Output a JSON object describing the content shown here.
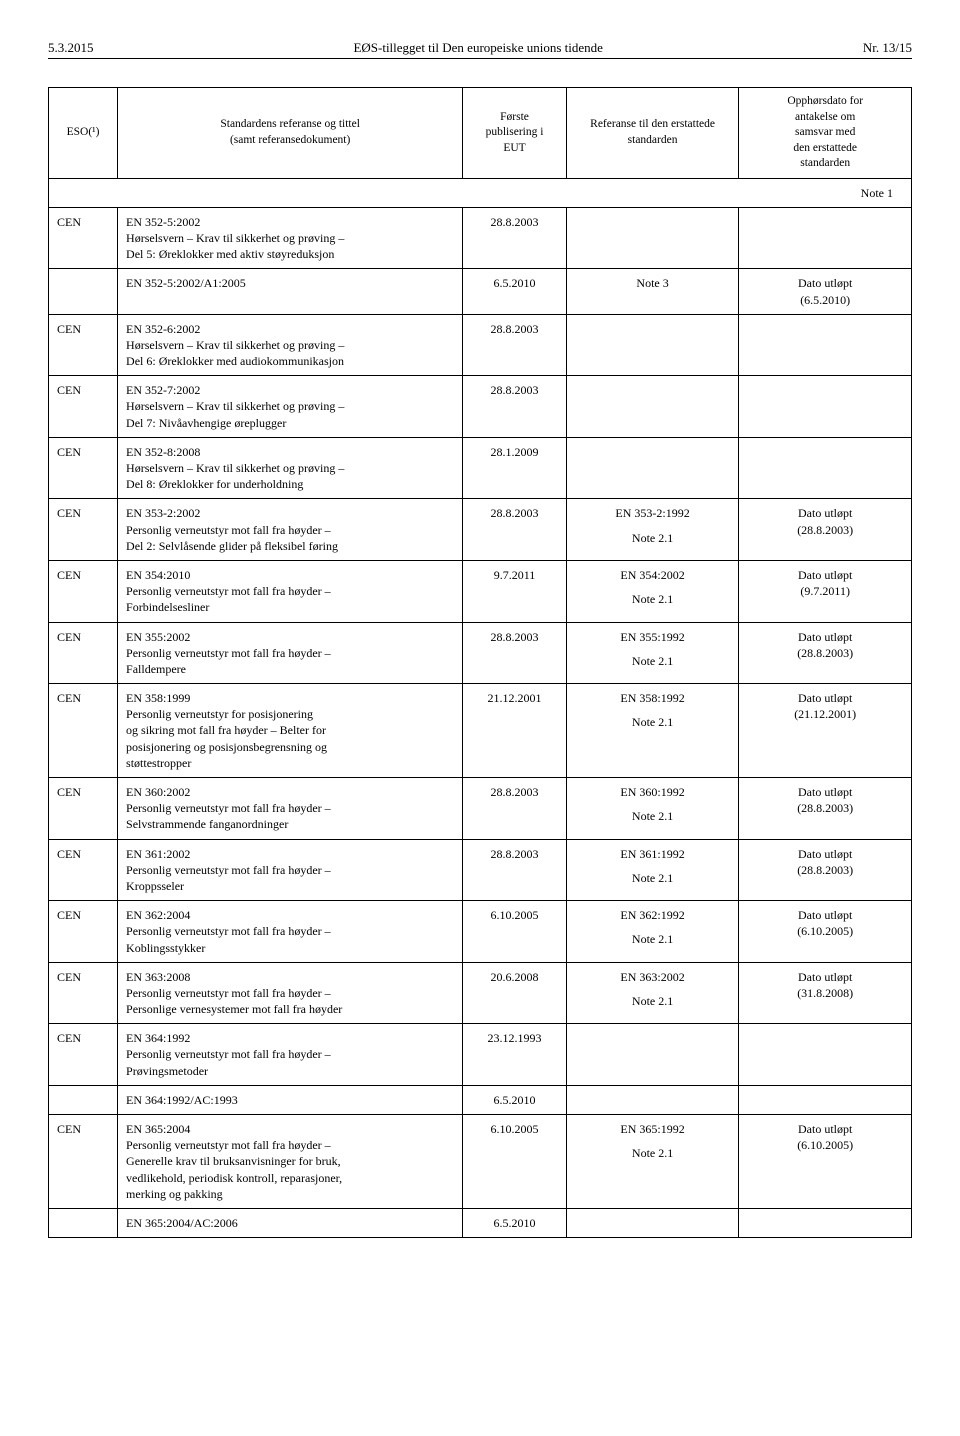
{
  "header": {
    "left": "5.3.2015",
    "center": "EØS-tillegget til Den europeiske unions tidende",
    "right": "Nr. 13/15"
  },
  "table": {
    "head": {
      "c1": "ESO(¹)",
      "c2": "Standardens referanse og tittel\n(samt referansedokument)",
      "c3": "Første\npublisering i\nEUT",
      "c4": "Referanse til den erstattede\nstandarden",
      "c5": "Opphørsdato for\nantakelse om\nsamsvar med\nden erstattede\nstandarden"
    },
    "note1": "Note 1",
    "rows": [
      {
        "c1": "CEN",
        "c2": "EN 352-5:2002\nHørselsvern – Krav til sikkerhet og prøving –\nDel 5: Øreklokker med aktiv støyreduksjon",
        "c3": "28.8.2003",
        "c4": "",
        "c5": ""
      },
      {
        "c2": "EN 352-5:2002/A1:2005",
        "c3": "6.5.2010",
        "c4": "Note 3",
        "c5": "Dato utløpt\n(6.5.2010)"
      },
      {
        "c1": "CEN",
        "c2": "EN 352-6:2002\nHørselsvern – Krav til sikkerhet og prøving –\nDel 6: Øreklokker med audiokommunikasjon",
        "c3": "28.8.2003",
        "c4": "",
        "c5": ""
      },
      {
        "c1": "CEN",
        "c2": "EN 352-7:2002\nHørselsvern – Krav til sikkerhet og prøving –\nDel 7: Nivåavhengige øreplugger",
        "c3": "28.8.2003",
        "c4": "",
        "c5": ""
      },
      {
        "c1": "CEN",
        "c2": "EN 352-8:2008\nHørselsvern – Krav til sikkerhet og prøving –\nDel 8: Øreklokker for underholdning",
        "c3": "28.1.2009",
        "c4": "",
        "c5": ""
      },
      {
        "c1": "CEN",
        "c2": "EN 353-2:2002\nPersonlig verneutstyr mot fall fra høyder –\nDel 2: Selvlåsende glider på fleksibel føring",
        "c3": "28.8.2003",
        "c4top": "EN 353-2:1992",
        "c4bot": "Note 2.1",
        "c5": "Dato utløpt\n(28.8.2003)"
      },
      {
        "c1": "CEN",
        "c2": "EN 354:2010\nPersonlig verneutstyr mot fall fra høyder –\nForbindelsesliner",
        "c3": "9.7.2011",
        "c4top": "EN 354:2002",
        "c4bot": "Note 2.1",
        "c5": "Dato utløpt\n(9.7.2011)"
      },
      {
        "c1": "CEN",
        "c2": "EN 355:2002\nPersonlig verneutstyr mot fall fra høyder –\nFalldempere",
        "c3": "28.8.2003",
        "c4top": "EN 355:1992",
        "c4bot": "Note 2.1",
        "c5": "Dato utløpt\n(28.8.2003)"
      },
      {
        "c1": "CEN",
        "c2": "EN 358:1999\nPersonlig verneutstyr for posisjonering\nog sikring mot fall fra høyder – Belter for\nposisjonering og posisjonsbegrensning og\nstøttestropper",
        "c3": "21.12.2001",
        "c4top": "EN 358:1992",
        "c4bot": "Note 2.1",
        "c5": "Dato utløpt\n(21.12.2001)"
      },
      {
        "c1": "CEN",
        "c2": "EN 360:2002\nPersonlig verneutstyr mot fall fra høyder –\nSelvstrammende fanganordninger",
        "c3": "28.8.2003",
        "c4top": "EN 360:1992",
        "c4bot": "Note 2.1",
        "c5": "Dato utløpt\n(28.8.2003)"
      },
      {
        "c1": "CEN",
        "c2": "EN 361:2002\nPersonlig verneutstyr mot fall fra høyder –\nKroppsseler",
        "c3": "28.8.2003",
        "c4top": "EN 361:1992",
        "c4bot": "Note 2.1",
        "c5": "Dato utløpt\n(28.8.2003)"
      },
      {
        "c1": "CEN",
        "c2": "EN 362:2004\nPersonlig verneutstyr mot fall fra høyder –\nKoblingsstykker",
        "c3": "6.10.2005",
        "c4top": "EN 362:1992",
        "c4bot": "Note 2.1",
        "c5": "Dato utløpt\n(6.10.2005)"
      },
      {
        "c1": "CEN",
        "c2": "EN 363:2008\nPersonlig verneutstyr mot fall fra høyder –\nPersonlige vernesystemer mot fall fra høyder",
        "c3": "20.6.2008",
        "c4top": "EN 363:2002",
        "c4bot": "Note 2.1",
        "c5": "Dato utløpt\n(31.8.2008)"
      },
      {
        "c1": "CEN",
        "c2": "EN 364:1992\nPersonlig verneutstyr mot fall fra høyder –\nPrøvingsmetoder",
        "c3": "23.12.1993",
        "c4": "",
        "c5": ""
      },
      {
        "c2": "EN 364:1992/AC:1993",
        "c3": "6.5.2010",
        "c4": "",
        "c5": ""
      },
      {
        "c1": "CEN",
        "c2": "EN 365:2004\nPersonlig verneutstyr mot fall fra høyder –\nGenerelle krav til bruksanvisninger for bruk,\nvedlikehold, periodisk kontroll, reparasjoner,\nmerking og pakking",
        "c3": "6.10.2005",
        "c4top": "EN 365:1992",
        "c4bot": "Note 2.1",
        "c5": "Dato utløpt\n(6.10.2005)"
      },
      {
        "c2": "EN 365:2004/AC:2006",
        "c3": "6.5.2010",
        "c4": "",
        "c5": ""
      }
    ]
  }
}
